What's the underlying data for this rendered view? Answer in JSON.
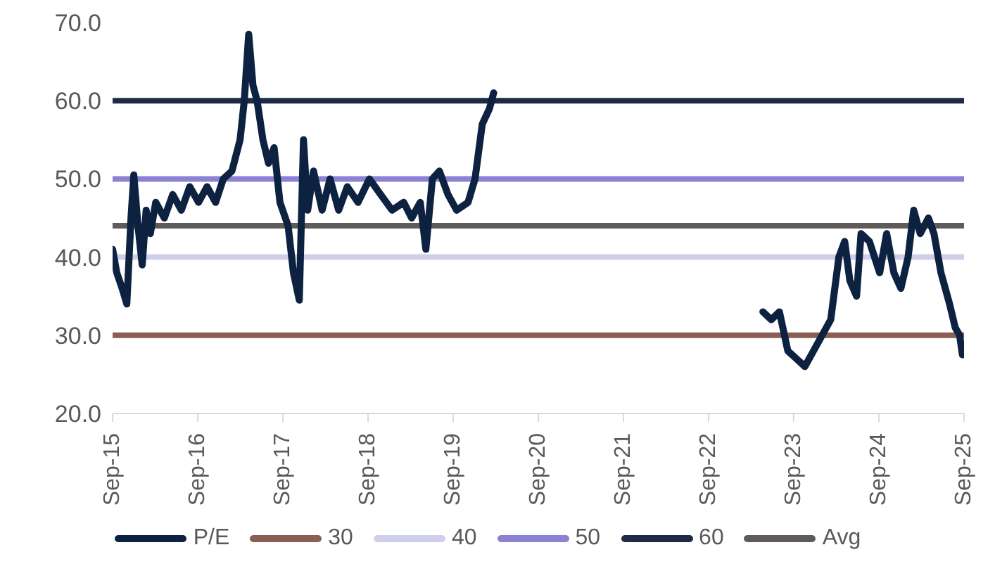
{
  "chart_data": {
    "type": "line",
    "ylim": [
      20,
      70
    ],
    "yticks": [
      {
        "value": 20,
        "label": "20.0"
      },
      {
        "value": 30,
        "label": "30.0"
      },
      {
        "value": 40,
        "label": "40.0"
      },
      {
        "value": 50,
        "label": "50.0"
      },
      {
        "value": 60,
        "label": "60.0"
      },
      {
        "value": 70,
        "label": "70.0"
      }
    ],
    "xlim": [
      "2015-09",
      "2025-09"
    ],
    "xticks": [
      {
        "value": "2015-09",
        "label": "Sep-15"
      },
      {
        "value": "2016-09",
        "label": "Sep-16"
      },
      {
        "value": "2017-09",
        "label": "Sep-17"
      },
      {
        "value": "2018-09",
        "label": "Sep-18"
      },
      {
        "value": "2019-09",
        "label": "Sep-19"
      },
      {
        "value": "2020-09",
        "label": "Sep-20"
      },
      {
        "value": "2021-09",
        "label": "Sep-21"
      },
      {
        "value": "2022-09",
        "label": "Sep-22"
      },
      {
        "value": "2023-09",
        "label": "Sep-23"
      },
      {
        "value": "2024-09",
        "label": "Sep-24"
      },
      {
        "value": "2025-09",
        "label": "Sep-25"
      }
    ],
    "grid": false,
    "legend": "bottom",
    "marker": "none",
    "line_style": "solid",
    "series": [
      {
        "name": "P/E",
        "color": "#0d2240",
        "x": [
          "2015-09-01",
          "2015-09-19",
          "2015-10-12",
          "2015-11-01",
          "2015-11-19",
          "2015-12-01",
          "2015-12-19",
          "2016-01-06",
          "2016-01-23",
          "2016-02-10",
          "2016-03-04",
          "2016-04-10",
          "2016-05-16",
          "2016-06-22",
          "2016-07-28",
          "2016-09-04",
          "2016-10-10",
          "2016-11-16",
          "2016-12-19",
          "2017-01-25",
          "2017-03-01",
          "2017-03-19",
          "2017-04-07",
          "2017-04-25",
          "2017-05-13",
          "2017-06-07",
          "2017-07-01",
          "2017-07-25",
          "2017-08-19",
          "2017-09-23",
          "2017-10-16",
          "2017-11-10",
          "2017-11-28",
          "2017-12-16",
          "2018-01-10",
          "2018-02-16",
          "2018-03-22",
          "2018-04-28",
          "2018-06-04",
          "2018-07-20",
          "2018-09-07",
          "2018-10-25",
          "2018-12-13",
          "2019-02-01",
          "2019-03-07",
          "2019-04-13",
          "2019-05-07",
          "2019-06-04",
          "2019-07-04",
          "2019-08-10",
          "2019-09-16",
          "2019-11-04",
          "2019-12-04",
          "2020-01-04",
          "2020-02-04",
          "2020-02-22",
          "2021-09-01",
          "2023-04-22",
          "2023-05-28",
          "2023-07-02",
          "2023-08-07",
          "2023-09-13",
          "2023-10-19",
          "2023-11-25",
          "2024-01-01",
          "2024-02-07",
          "2024-03-13",
          "2024-04-07",
          "2024-04-29",
          "2024-05-28",
          "2024-06-16",
          "2024-07-22",
          "2024-09-04",
          "2024-10-04",
          "2024-11-04",
          "2024-12-04",
          "2025-01-04",
          "2025-01-28",
          "2025-02-25",
          "2025-04-01",
          "2025-04-25",
          "2025-05-25",
          "2025-07-01",
          "2025-07-25",
          "2025-08-13",
          "2025-08-25"
        ],
        "values": [
          41,
          38,
          36,
          34,
          45,
          50.5,
          44,
          39,
          46,
          43,
          47,
          45,
          48,
          46,
          49,
          47,
          49,
          47,
          50,
          51,
          55,
          60,
          68.5,
          62,
          60,
          55,
          52,
          54,
          47,
          44,
          38,
          34.5,
          55,
          46,
          51,
          46,
          50,
          46,
          49,
          47,
          50,
          48,
          46,
          47,
          45,
          47,
          41,
          50,
          51,
          48,
          46,
          47,
          50,
          57,
          59,
          61,
          null,
          33,
          32,
          33,
          28,
          27,
          26,
          28,
          30,
          32,
          40,
          42,
          37,
          35,
          43,
          42,
          38,
          43,
          38,
          36,
          40,
          46,
          43,
          45,
          43,
          38,
          34,
          31,
          30,
          27.5
        ]
      },
      {
        "name": "30",
        "color": "#8b5e55",
        "x": [
          "2015-09",
          "2025-09"
        ],
        "values": [
          30,
          30
        ]
      },
      {
        "name": "40",
        "color": "#d0cfeb",
        "x": [
          "2015-09",
          "2025-09"
        ],
        "values": [
          40,
          40
        ]
      },
      {
        "name": "50",
        "color": "#8b82d4",
        "x": [
          "2015-09",
          "2025-09"
        ],
        "values": [
          50,
          50
        ]
      },
      {
        "name": "60",
        "color": "#1f2a44",
        "x": [
          "2015-09",
          "2025-09"
        ],
        "values": [
          60,
          60
        ]
      },
      {
        "name": "Avg",
        "color": "#5f5b5b",
        "x": [
          "2015-09",
          "2025-09"
        ],
        "values": [
          44,
          44
        ]
      }
    ]
  }
}
